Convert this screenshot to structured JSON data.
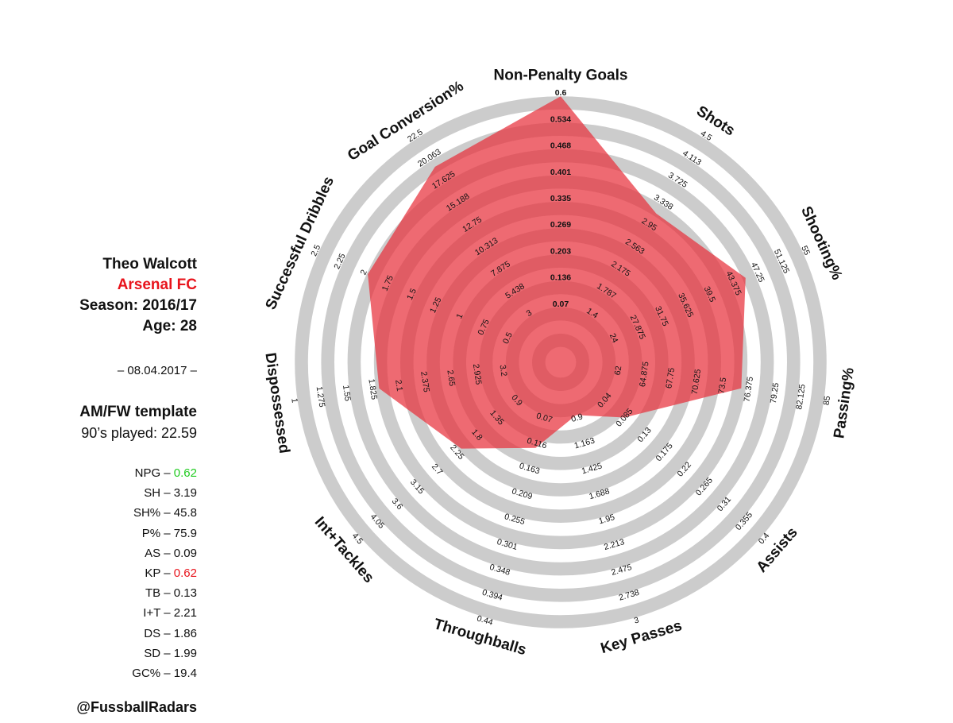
{
  "player": {
    "name": "Theo Walcott",
    "team": "Arsenal FC",
    "season": "Season: 2016/17",
    "age": "Age: 28",
    "date": "– 08.04.2017 –",
    "template": "AM/FW template",
    "played": "90’s played: 22.59",
    "handle": "@FussballRadars"
  },
  "colors": {
    "team": "#e8141c",
    "good": "#22cc22",
    "bad": "#e8141c",
    "ring": "#cccccc",
    "polygon": "#e8303c"
  },
  "stats": [
    {
      "label": "NPG – ",
      "value": "0.62",
      "color": "#22cc22"
    },
    {
      "label": "SH – ",
      "value": "3.19",
      "color": ""
    },
    {
      "label": "SH% – ",
      "value": "45.8",
      "color": ""
    },
    {
      "label": "P% – ",
      "value": "75.9",
      "color": ""
    },
    {
      "label": "AS – ",
      "value": "0.09",
      "color": ""
    },
    {
      "label": "KP – ",
      "value": "0.62",
      "color": "#e8141c"
    },
    {
      "label": "TB – ",
      "value": "0.13",
      "color": ""
    },
    {
      "label": "I+T – ",
      "value": "2.21",
      "color": ""
    },
    {
      "label": "DS – ",
      "value": "1.86",
      "color": ""
    },
    {
      "label": "SD – ",
      "value": "1.99",
      "color": ""
    },
    {
      "label": "GC% – ",
      "value": "19.4",
      "color": ""
    }
  ],
  "chart_data": {
    "type": "radar",
    "axes": [
      {
        "label": "Non-Penalty Goals",
        "ticks": [
          "0.07",
          "0.136",
          "0.203",
          "0.269",
          "0.335",
          "0.401",
          "0.468",
          "0.534",
          "0.6"
        ],
        "value": 0.62
      },
      {
        "label": "Shots",
        "ticks": [
          "1.4",
          "1.787",
          "2.175",
          "2.563",
          "2.95",
          "3.338",
          "3.725",
          "4.113",
          "4.5"
        ],
        "value": 3.19
      },
      {
        "label": "Shooting%",
        "ticks": [
          "24",
          "27.875",
          "31.75",
          "35.625",
          "39.5",
          "43.375",
          "47.25",
          "51.125",
          "55"
        ],
        "value": 45.8
      },
      {
        "label": "Passing%",
        "ticks": [
          "62",
          "64.875",
          "67.75",
          "70.625",
          "73.5",
          "76.375",
          "79.25",
          "82.125",
          "85"
        ],
        "value": 75.9
      },
      {
        "label": "Assists",
        "ticks": [
          "0.04",
          "0.085",
          "0.13",
          "0.175",
          "0.22",
          "0.265",
          "0.31",
          "0.355",
          "0.4"
        ],
        "value": 0.09
      },
      {
        "label": "Key Passes",
        "ticks": [
          "0.9",
          "1.163",
          "1.425",
          "1.688",
          "1.95",
          "2.213",
          "2.475",
          "2.738",
          "3"
        ],
        "value": 0.62
      },
      {
        "label": "Throughballs",
        "ticks": [
          "0.07",
          "0.116",
          "0.163",
          "0.209",
          "0.255",
          "0.301",
          "0.348",
          "0.394",
          "0.44"
        ],
        "value": 0.13
      },
      {
        "label": "Int+Tackles",
        "ticks": [
          "0.9",
          "1.35",
          "1.8",
          "2.25",
          "2.7",
          "3.15",
          "3.6",
          "4.05",
          "4.5"
        ],
        "value": 2.21
      },
      {
        "label": "Dispossessed",
        "ticks": [
          "3.2",
          "2.925",
          "2.65",
          "2.375",
          "2.1",
          "1.825",
          "1.55",
          "1.275",
          "1"
        ],
        "value": 1.86
      },
      {
        "label": "Successful Dribbles",
        "ticks": [
          "0.5",
          "0.75",
          "1",
          "1.25",
          "1.5",
          "1.75",
          "2",
          "2.25",
          "2.5"
        ],
        "value": 1.99
      },
      {
        "label": "Goal Conversion%",
        "ticks": [
          "3",
          "5.438",
          "7.875",
          "10.313",
          "12.75",
          "15.188",
          "17.625",
          "20.063",
          "22.5"
        ],
        "value": 19.4
      }
    ]
  }
}
